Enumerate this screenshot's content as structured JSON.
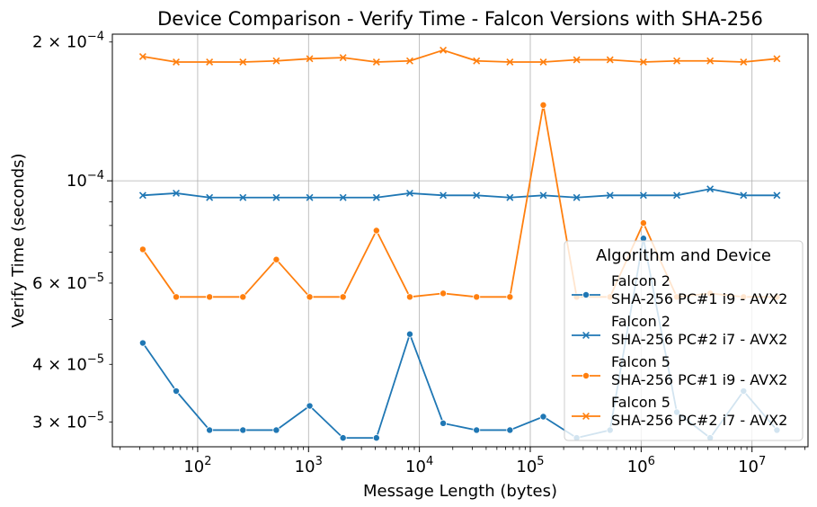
{
  "chart_data": {
    "type": "line",
    "title": "Device Comparison - Verify Time - Falcon Versions with SHA-256",
    "xlabel": "Message Length (bytes)",
    "ylabel": "Verify Time (seconds)",
    "xscale": "log",
    "yscale": "log",
    "xlim": [
      17,
      32000000
    ],
    "ylim": [
      2.65e-05,
      0.000208
    ],
    "grid": "major",
    "x_ticks": [
      {
        "value": 100,
        "base": "10",
        "exp": "2"
      },
      {
        "value": 1000,
        "base": "10",
        "exp": "3"
      },
      {
        "value": 10000,
        "base": "10",
        "exp": "4"
      },
      {
        "value": 100000,
        "base": "10",
        "exp": "5"
      },
      {
        "value": 1000000,
        "base": "10",
        "exp": "6"
      },
      {
        "value": 10000000,
        "base": "10",
        "exp": "7"
      }
    ],
    "y_ticks": [
      {
        "value": 3e-05,
        "mant": "3 × 10",
        "exp": "−5",
        "major": false
      },
      {
        "value": 4e-05,
        "mant": "4 × 10",
        "exp": "−5",
        "major": false
      },
      {
        "value": 6e-05,
        "mant": "6 × 10",
        "exp": "−5",
        "major": false
      },
      {
        "value": 0.0001,
        "mant": "10",
        "exp": "−4",
        "major": true
      },
      {
        "value": 0.0002,
        "mant": "2 × 10",
        "exp": "−4",
        "major": false
      }
    ],
    "x": [
      32,
      64,
      128,
      256,
      512,
      1024,
      2048,
      4096,
      8192,
      16384,
      32768,
      65536,
      131072,
      262144,
      524288,
      1048576,
      2097152,
      4194304,
      8388608,
      16777216
    ],
    "series": [
      {
        "name_line1": "Falcon 2",
        "name_line2": "SHA-256 PC#1 i9 - AVX2",
        "color": "#1f77b4",
        "marker": "circle",
        "values": [
          4.45e-05,
          3.5e-05,
          2.88e-05,
          2.88e-05,
          2.88e-05,
          3.25e-05,
          2.77e-05,
          2.77e-05,
          4.65e-05,
          2.98e-05,
          2.88e-05,
          2.88e-05,
          3.08e-05,
          2.77e-05,
          2.88e-05,
          7.5e-05,
          3.15e-05,
          2.77e-05,
          3.5e-05,
          2.88e-05
        ]
      },
      {
        "name_line1": "Falcon 2",
        "name_line2": "SHA-256 PC#2 i7 - AVX2",
        "color": "#1f77b4",
        "marker": "x",
        "values": [
          9.3e-05,
          9.4e-05,
          9.2e-05,
          9.2e-05,
          9.2e-05,
          9.2e-05,
          9.2e-05,
          9.2e-05,
          9.4e-05,
          9.3e-05,
          9.3e-05,
          9.2e-05,
          9.3e-05,
          9.2e-05,
          9.3e-05,
          9.3e-05,
          9.3e-05,
          9.6e-05,
          9.3e-05,
          9.3e-05
        ]
      },
      {
        "name_line1": "Falcon 5",
        "name_line2": "SHA-256 PC#1 i9 - AVX2",
        "color": "#ff7f0e",
        "marker": "circle",
        "values": [
          7.1e-05,
          5.6e-05,
          5.6e-05,
          5.6e-05,
          6.75e-05,
          5.6e-05,
          5.6e-05,
          7.8e-05,
          5.6e-05,
          5.7e-05,
          5.6e-05,
          5.6e-05,
          0.000146,
          5.6e-05,
          5.6e-05,
          8.1e-05,
          5.6e-05,
          5.7e-05,
          5.6e-05,
          5.6e-05
        ]
      },
      {
        "name_line1": "Falcon 5",
        "name_line2": "SHA-256 PC#2 i7 - AVX2",
        "color": "#ff7f0e",
        "marker": "x",
        "values": [
          0.000186,
          0.000181,
          0.000181,
          0.000181,
          0.000182,
          0.000184,
          0.000185,
          0.000181,
          0.000182,
          0.000192,
          0.000182,
          0.000181,
          0.000181,
          0.000183,
          0.000183,
          0.000181,
          0.000182,
          0.000182,
          0.000181,
          0.000184
        ]
      }
    ],
    "legend": {
      "title": "Algorithm and Device",
      "position": "lower-right"
    }
  }
}
